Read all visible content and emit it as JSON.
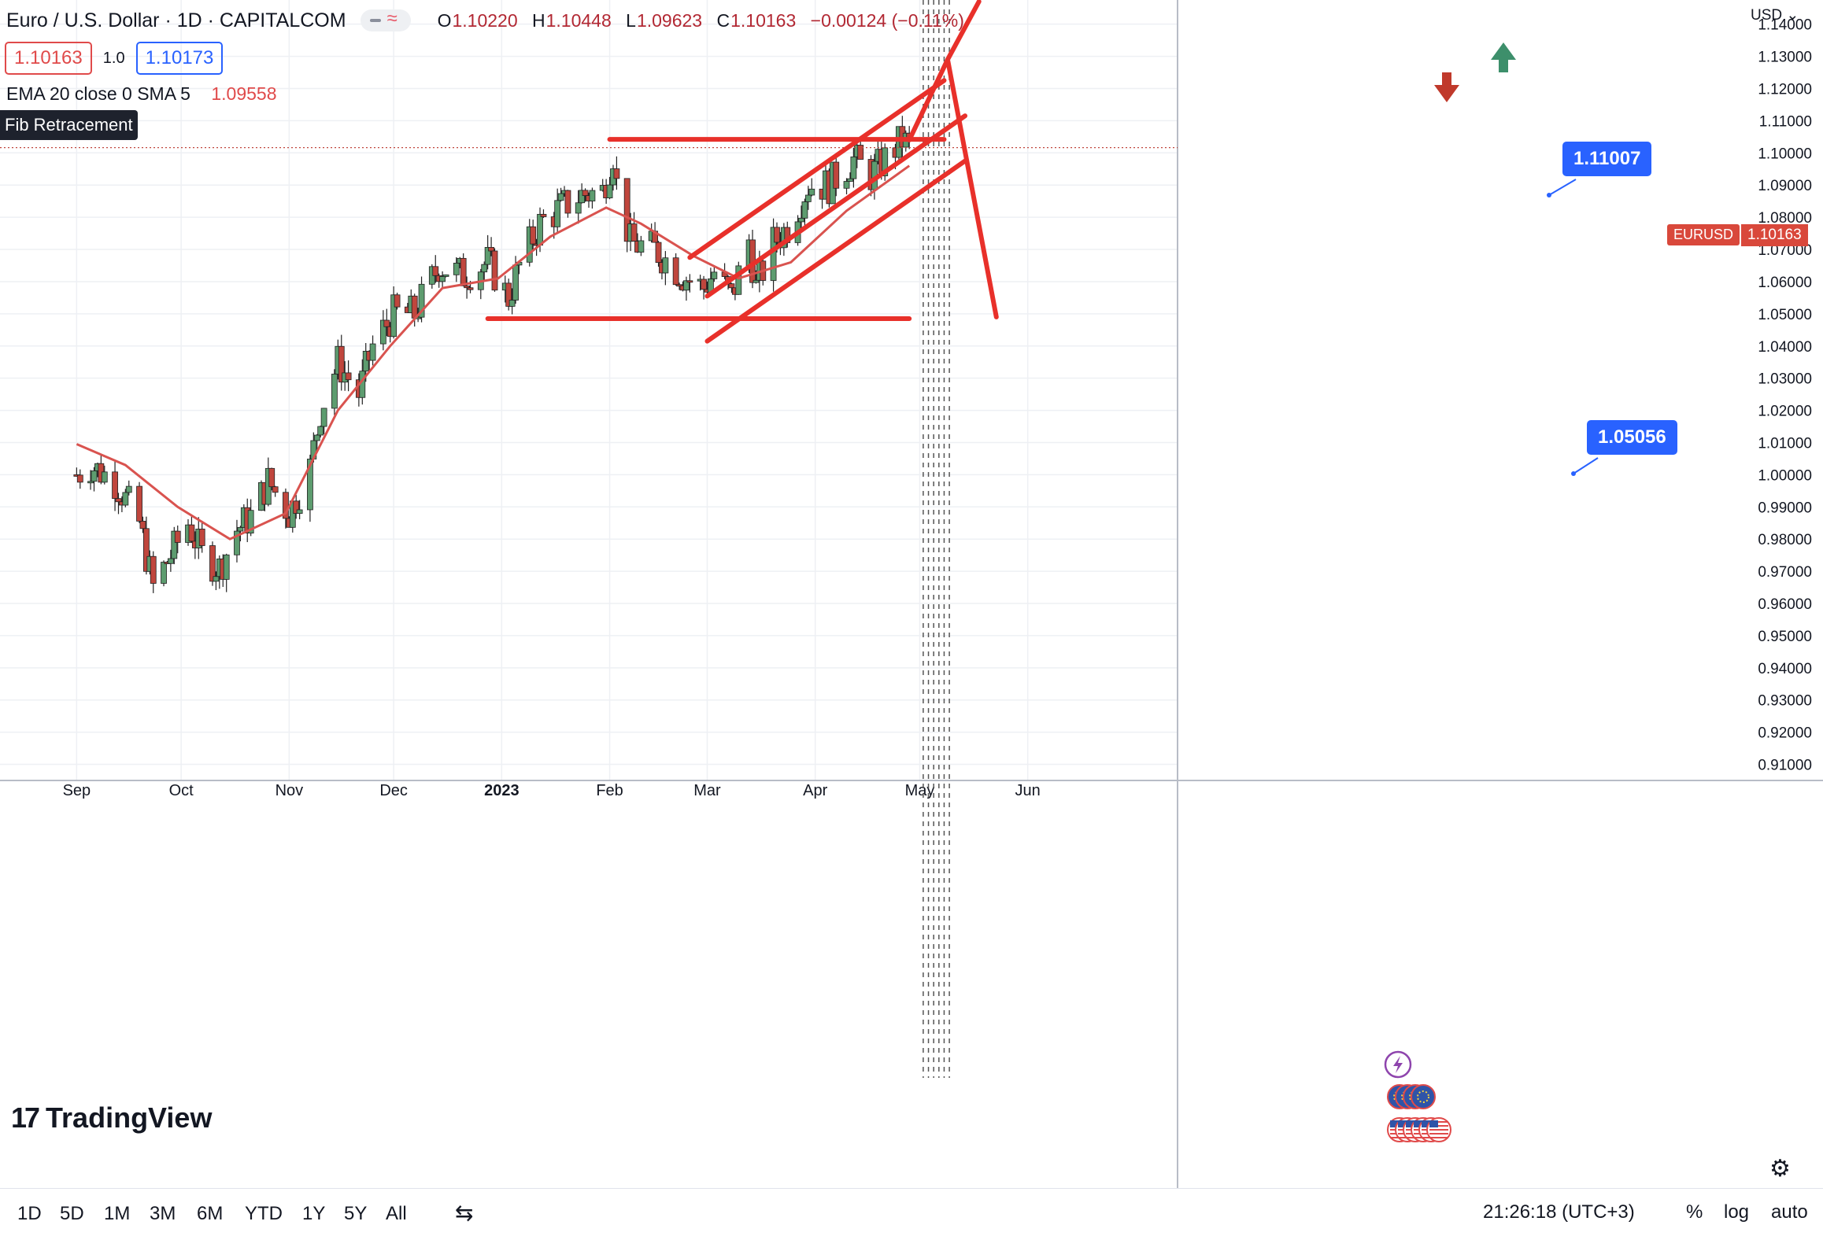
{
  "header": {
    "title": "Euro / U.S. Dollar · 1D · CAPITALCOM",
    "open_label": "O",
    "open": "1.10220",
    "high_label": "H",
    "high": "1.10448",
    "low_label": "L",
    "low": "1.09623",
    "close_label": "C",
    "close": "1.10163",
    "change": "−0.00124 (−0.11%)"
  },
  "quote": {
    "sell": "1.10163",
    "spread": "1.0",
    "buy": "1.10173"
  },
  "indicator": {
    "label": "EMA 20 close 0 SMA 5",
    "value": "1.09558"
  },
  "drawing_tool_tag": "Fib Retracement",
  "brand": {
    "name": "TradingView",
    "mark": "17"
  },
  "currency": "USD",
  "symbol_tag": "EURUSD",
  "last_price_tag": "1.10163",
  "callouts": {
    "upper": "1.11007",
    "lower": "1.05056"
  },
  "timeframes": [
    "1D",
    "5D",
    "1M",
    "3M",
    "6M",
    "YTD",
    "1Y",
    "5Y",
    "All"
  ],
  "clock": "21:26:18 (UTC+3)",
  "options": {
    "percent": "%",
    "log": "log",
    "auto": "auto"
  },
  "colors": {
    "up": "#5d9c6f",
    "down": "#c0463d",
    "ema": "#d9534f",
    "drawing": "#e8302a",
    "callout": "#2962ff",
    "arrow_up": "#3d8f6b",
    "arrow_down": "#c0392b"
  },
  "icons": [
    "flash-icon",
    "eu-flag-event-icon",
    "us-flag-event-icon",
    "gear-icon",
    "compare-icon",
    "arrow-up-icon",
    "arrow-down-icon"
  ],
  "chart_data": {
    "type": "candlestick",
    "title": "Euro / U.S. Dollar · 1D · CAPITALCOM",
    "xlabel": "",
    "ylabel": "",
    "ylim": [
      0.905,
      1.1475
    ],
    "y_ticks": [
      "1.14000",
      "1.13000",
      "1.12000",
      "1.11000",
      "1.10000",
      "1.09000",
      "1.08000",
      "1.07000",
      "1.06000",
      "1.05000",
      "1.04000",
      "1.03000",
      "1.02000",
      "1.01000",
      "1.00000",
      "0.99000",
      "0.98000",
      "0.97000",
      "0.96000",
      "0.95000",
      "0.94000",
      "0.93000",
      "0.92000",
      "0.91000"
    ],
    "x_ticks": [
      "Sep",
      "Oct",
      "Nov",
      "Dec",
      "2023",
      "Feb",
      "Mar",
      "Apr",
      "May",
      "Jun"
    ],
    "x_tick_dates": [
      "2022-09-01",
      "2022-10-01",
      "2022-11-01",
      "2022-12-01",
      "2023-01-01",
      "2023-02-01",
      "2023-03-01",
      "2023-04-01",
      "2023-05-01",
      "2023-06-01"
    ],
    "grid": true,
    "series": [
      {
        "name": "EURUSD",
        "x": [
          "2022-09-01",
          "2022-09-05",
          "2022-09-12",
          "2022-09-19",
          "2022-09-23",
          "2022-09-28",
          "2022-10-03",
          "2022-10-07",
          "2022-10-12",
          "2022-10-17",
          "2022-10-21",
          "2022-10-26",
          "2022-11-01",
          "2022-11-07",
          "2022-11-10",
          "2022-11-15",
          "2022-11-21",
          "2022-11-25",
          "2022-12-01",
          "2022-12-07",
          "2022-12-14",
          "2022-12-21",
          "2022-12-28",
          "2023-01-03",
          "2023-01-06",
          "2023-01-12",
          "2023-01-18",
          "2023-01-24",
          "2023-01-30",
          "2023-02-02",
          "2023-02-03",
          "2023-02-07",
          "2023-02-14",
          "2023-02-22",
          "2023-02-28",
          "2023-03-03",
          "2023-03-08",
          "2023-03-13",
          "2023-03-15",
          "2023-03-20",
          "2023-03-24",
          "2023-03-30",
          "2023-04-05",
          "2023-04-12",
          "2023-04-17",
          "2023-04-21",
          "2023-04-26",
          "2023-04-28"
        ],
        "close": [
          1.0,
          1.003,
          0.998,
          0.985,
          0.965,
          0.975,
          0.985,
          0.975,
          0.971,
          0.983,
          0.987,
          0.998,
          0.988,
          1.002,
          1.02,
          1.035,
          1.025,
          1.04,
          1.05,
          1.05,
          1.065,
          1.062,
          1.066,
          1.055,
          1.065,
          1.078,
          1.083,
          1.087,
          1.088,
          1.1,
          1.09,
          1.072,
          1.07,
          1.062,
          1.058,
          1.063,
          1.055,
          1.073,
          1.058,
          1.072,
          1.077,
          1.09,
          1.09,
          1.098,
          1.093,
          1.098,
          1.104,
          1.102
        ]
      },
      {
        "name": "EMA 20",
        "x": [
          "2022-09-01",
          "2022-09-15",
          "2022-09-30",
          "2022-10-15",
          "2022-10-31",
          "2022-11-15",
          "2022-11-30",
          "2022-12-15",
          "2022-12-31",
          "2023-01-15",
          "2023-01-31",
          "2023-02-10",
          "2023-02-25",
          "2023-03-10",
          "2023-03-25",
          "2023-04-10",
          "2023-04-28"
        ],
        "close": [
          1.0095,
          1.003,
          0.99,
          0.98,
          0.988,
          1.02,
          1.04,
          1.058,
          1.061,
          1.074,
          1.083,
          1.078,
          1.068,
          1.061,
          1.066,
          1.082,
          1.096
        ]
      }
    ],
    "annotations": [
      {
        "kind": "horizontal",
        "price": 1.1042,
        "from": "2023-02-01",
        "to": "2023-05-08"
      },
      {
        "kind": "horizontal",
        "price": 1.0485,
        "from": "2022-12-28",
        "to": "2023-04-28"
      },
      {
        "kind": "channel-upper",
        "from": [
          "2023-02-24",
          1.0675
        ],
        "to": [
          "2023-05-08",
          1.1225
        ]
      },
      {
        "kind": "channel-middle",
        "from": [
          "2023-03-01",
          1.0555
        ],
        "to": [
          "2023-05-14",
          1.1115
        ]
      },
      {
        "kind": "channel-lower",
        "from": [
          "2023-03-01",
          1.0415
        ],
        "to": [
          "2023-05-14",
          1.0975
        ]
      },
      {
        "kind": "projection-down",
        "points": [
          [
            "2023-04-28",
            1.104
          ],
          [
            "2023-05-09",
            1.129
          ],
          [
            "2023-05-23",
            1.049
          ]
        ]
      },
      {
        "kind": "projection-up",
        "points": [
          [
            "2023-05-09",
            1.129
          ],
          [
            "2023-05-18",
            1.147
          ]
        ]
      },
      {
        "kind": "target",
        "price": "1.11007"
      },
      {
        "kind": "target",
        "price": "1.05056"
      }
    ]
  }
}
